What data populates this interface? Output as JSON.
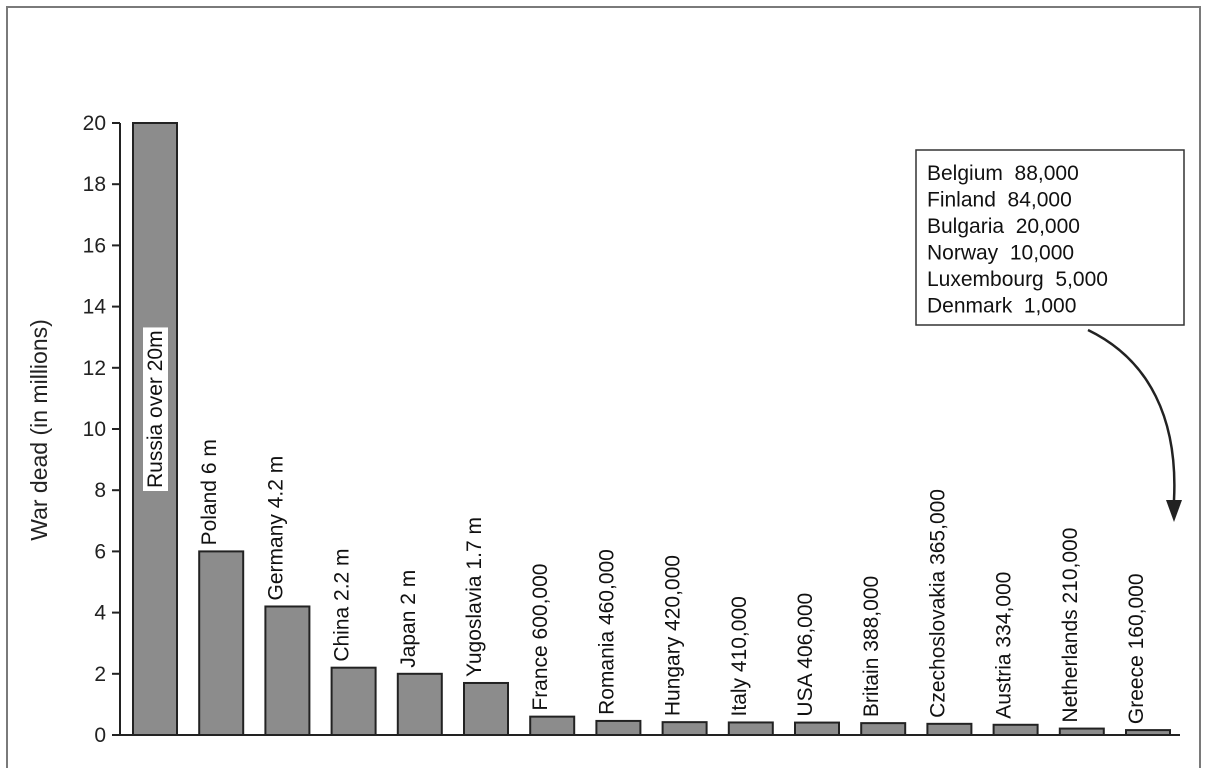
{
  "chart_data": {
    "type": "bar",
    "ylabel": "War dead (in millions)",
    "ylim": [
      0,
      20
    ],
    "yticks": [
      0,
      2,
      4,
      6,
      8,
      10,
      12,
      14,
      16,
      18,
      20
    ],
    "grid": false,
    "categories": [
      "Russia",
      "Poland",
      "Germany",
      "China",
      "Japan",
      "Yugoslavia",
      "France",
      "Romania",
      "Hungary",
      "Italy",
      "USA",
      "Britain",
      "Czechoslovakia",
      "Austria",
      "Netherlands",
      "Greece"
    ],
    "values": [
      20,
      6,
      4.2,
      2.2,
      2,
      1.7,
      0.6,
      0.46,
      0.42,
      0.41,
      0.406,
      0.388,
      0.365,
      0.334,
      0.21,
      0.16
    ],
    "bar_labels": [
      "Russia over 20m",
      "Poland 6 m",
      "Germany 4.2 m",
      "China 2.2 m",
      "Japan 2 m",
      "Yugoslavia 1.7 m",
      "France 600,000",
      "Romania 460,000",
      "Hungary 420,000",
      "Italy 410,000",
      "USA 406,000",
      "Britain 388,000",
      "Czechoslovakia 365,000",
      "Austria 334,000",
      "Netherlands 210,000",
      "Greece 160,000"
    ],
    "bar_color": "#8c8c8c",
    "annotation": {
      "placement": "top-right",
      "lines": [
        "Belgium  88,000",
        "Finland  84,000",
        "Bulgaria  20,000",
        "Norway  10,000",
        "Luxembourg  5,000",
        "Denmark  1,000"
      ]
    }
  }
}
